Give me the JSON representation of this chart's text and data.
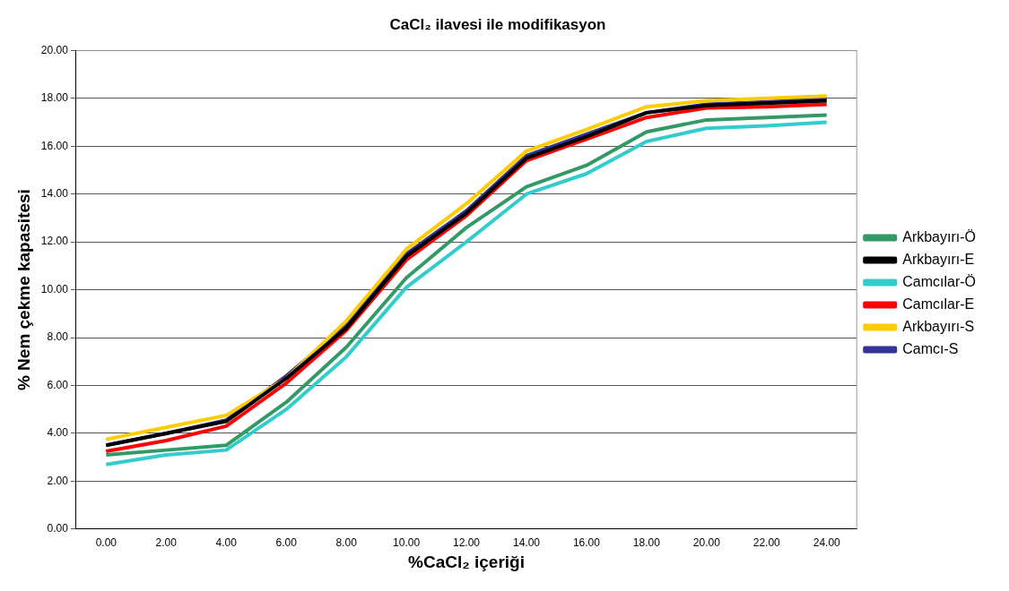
{
  "chart_data": {
    "type": "line",
    "title": "CaCl₂ ilavesi ile modifikasyon",
    "xlabel": "%CaCl₂ içeriği",
    "ylabel": "% Nem çekme kapasitesi",
    "categories": [
      "0.00",
      "2.00",
      "4.00",
      "6.00",
      "8.00",
      "10.00",
      "12.00",
      "14.00",
      "16.00",
      "18.00",
      "20.00",
      "22.00",
      "24.00"
    ],
    "ylim": [
      0,
      20
    ],
    "yticks": [
      {
        "value": 0,
        "label": "0.00"
      },
      {
        "value": 2,
        "label": "2.00"
      },
      {
        "value": 4,
        "label": "4.00"
      },
      {
        "value": 6,
        "label": "6.00"
      },
      {
        "value": 8,
        "label": "8.00"
      },
      {
        "value": 10,
        "label": "10.00"
      },
      {
        "value": 12,
        "label": "12.00"
      },
      {
        "value": 14,
        "label": "14.00"
      },
      {
        "value": 16,
        "label": "16.00"
      },
      {
        "value": 18,
        "label": "18.00"
      },
      {
        "value": 20,
        "label": "20.00"
      }
    ],
    "grid": "y",
    "legend": "right",
    "marker": "none",
    "series": [
      {
        "name": "Arkbayırı-Ö",
        "color": "#339966",
        "values": [
          3.1,
          3.3,
          3.5,
          5.3,
          7.6,
          10.5,
          12.6,
          14.3,
          15.2,
          16.6,
          17.1,
          17.2,
          17.3
        ]
      },
      {
        "name": "Arkbayırı-E",
        "color": "#000000",
        "values": [
          3.5,
          4.0,
          4.5,
          6.3,
          8.4,
          11.4,
          13.2,
          15.5,
          16.4,
          17.4,
          17.7,
          17.8,
          17.9
        ]
      },
      {
        "name": "Camcılar-Ö",
        "color": "#33cccc",
        "values": [
          2.7,
          3.1,
          3.3,
          5.0,
          7.2,
          10.1,
          12.0,
          14.0,
          14.85,
          16.2,
          16.75,
          16.85,
          17.0
        ]
      },
      {
        "name": "Camcılar-E",
        "color": "#ff0000",
        "values": [
          3.25,
          3.7,
          4.3,
          6.1,
          8.3,
          11.25,
          13.1,
          15.4,
          16.3,
          17.2,
          17.6,
          17.65,
          17.75
        ]
      },
      {
        "name": "Arkbayırı-S",
        "color": "#ffcc00",
        "values": [
          3.75,
          4.25,
          4.75,
          6.3,
          8.7,
          11.7,
          13.6,
          15.8,
          16.7,
          17.65,
          17.9,
          18.0,
          18.1
        ]
      },
      {
        "name": "Camcı-S",
        "color": "#333399",
        "values": [
          3.5,
          4.0,
          4.55,
          6.4,
          8.5,
          11.5,
          13.3,
          15.6,
          16.5,
          17.4,
          17.75,
          17.85,
          18.0
        ]
      }
    ]
  }
}
